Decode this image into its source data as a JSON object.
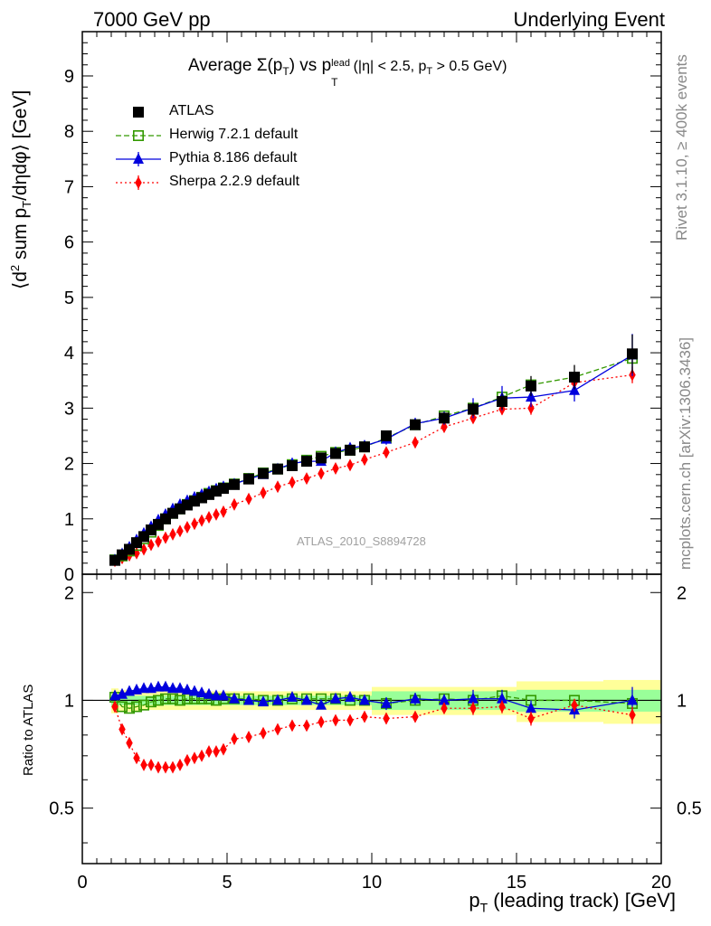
{
  "header": {
    "left": "7000 GeV pp",
    "right": "Underlying Event"
  },
  "side_labels": {
    "rivet": "Rivet 3.1.10, ≥ 400k events",
    "mcplots": "mcplots.cern.ch [arXiv:1306.3436]"
  },
  "watermark": "ATLAS_2010_S8894728",
  "chart_data": [
    {
      "type": "scatter",
      "title": "Average Σ(pT) vs pT lead (|η| < 2.5, pT > 0.5 GeV)",
      "title_parts": {
        "a": "Average ",
        "sigma": "Σ(p",
        "sub1": "T",
        "close": ") vs p",
        "sup": "lead",
        "sub2": "T",
        "rest": " (|η| < 2.5, p",
        "sub3": "T",
        "end": " > 0.5 GeV)"
      },
      "xlabel": "pT (leading track) [GeV]",
      "xlabel_parts": {
        "p": "p",
        "sub": "T",
        "rest": " (leading track) [GeV]"
      },
      "ylabel": "⟨d² sum pT/dηdφ⟩ [GeV]",
      "ylabel_parts": {
        "a": "⟨d",
        "sup": "2",
        "b": " sum p",
        "sub": "T",
        "c": "/dηdφ⟩ [GeV]"
      },
      "xlim": [
        0,
        20
      ],
      "ylim": [
        0,
        9.8
      ],
      "x_ticks": [
        0,
        5,
        10,
        15,
        20
      ],
      "y_ticks": [
        0,
        1,
        2,
        3,
        4,
        5,
        6,
        7,
        8,
        9
      ],
      "legend_position": "top-left",
      "x": [
        1.125,
        1.375,
        1.625,
        1.875,
        2.125,
        2.375,
        2.625,
        2.875,
        3.125,
        3.375,
        3.625,
        3.875,
        4.125,
        4.375,
        4.625,
        4.875,
        5.25,
        5.75,
        6.25,
        6.75,
        7.25,
        7.75,
        8.25,
        8.75,
        9.25,
        9.75,
        10.5,
        11.5,
        12.5,
        13.5,
        14.5,
        15.5,
        17.0,
        19.0
      ],
      "series": [
        {
          "name": "ATLAS",
          "color": "#000000",
          "marker": "square",
          "values": [
            0.25,
            0.35,
            0.45,
            0.57,
            0.68,
            0.8,
            0.9,
            1.0,
            1.1,
            1.18,
            1.25,
            1.32,
            1.38,
            1.44,
            1.5,
            1.55,
            1.62,
            1.72,
            1.82,
            1.9,
            1.96,
            2.04,
            2.1,
            2.18,
            2.24,
            2.3,
            2.5,
            2.7,
            2.82,
            2.98,
            3.12,
            3.4,
            3.56,
            3.98
          ],
          "errors": [
            0.01,
            0.01,
            0.01,
            0.01,
            0.01,
            0.01,
            0.01,
            0.02,
            0.02,
            0.02,
            0.02,
            0.02,
            0.02,
            0.02,
            0.02,
            0.02,
            0.03,
            0.03,
            0.03,
            0.04,
            0.04,
            0.04,
            0.05,
            0.05,
            0.06,
            0.06,
            0.07,
            0.09,
            0.1,
            0.12,
            0.14,
            0.18,
            0.22,
            0.35
          ]
        },
        {
          "name": "Herwig 7.2.1 default",
          "color": "#339900",
          "marker": "open-square",
          "line": "dashed",
          "values": [
            0.26,
            0.33,
            0.42,
            0.52,
            0.64,
            0.76,
            0.88,
            1.0,
            1.1,
            1.18,
            1.26,
            1.33,
            1.39,
            1.46,
            1.51,
            1.56,
            1.63,
            1.73,
            1.83,
            1.9,
            1.98,
            2.06,
            2.13,
            2.2,
            2.24,
            2.3,
            2.46,
            2.7,
            2.86,
            3.0,
            3.2,
            3.42,
            3.56,
            3.9
          ]
        },
        {
          "name": "Pythia 8.186 default",
          "color": "#0000dd",
          "marker": "triangle",
          "line": "solid",
          "values": [
            0.26,
            0.37,
            0.49,
            0.62,
            0.74,
            0.86,
            0.98,
            1.08,
            1.18,
            1.26,
            1.33,
            1.39,
            1.44,
            1.49,
            1.54,
            1.58,
            1.63,
            1.72,
            1.8,
            1.9,
            2.0,
            2.04,
            2.04,
            2.2,
            2.28,
            2.32,
            2.44,
            2.72,
            2.82,
            3.0,
            3.18,
            3.2,
            3.32,
            3.96
          ],
          "errors": [
            0.01,
            0.01,
            0.01,
            0.01,
            0.01,
            0.01,
            0.01,
            0.02,
            0.02,
            0.02,
            0.02,
            0.02,
            0.02,
            0.02,
            0.02,
            0.02,
            0.03,
            0.03,
            0.03,
            0.04,
            0.04,
            0.04,
            0.05,
            0.06,
            0.07,
            0.08,
            0.1,
            0.1,
            0.12,
            0.18,
            0.22,
            0.18,
            0.2,
            0.38
          ]
        },
        {
          "name": "Sherpa 2.2.9 default",
          "color": "#ff0000",
          "marker": "diamond",
          "line": "dotted",
          "values": [
            0.24,
            0.29,
            0.34,
            0.38,
            0.45,
            0.53,
            0.59,
            0.66,
            0.72,
            0.78,
            0.85,
            0.91,
            0.97,
            1.03,
            1.08,
            1.13,
            1.26,
            1.36,
            1.47,
            1.58,
            1.66,
            1.73,
            1.82,
            1.91,
            1.97,
            2.07,
            2.2,
            2.38,
            2.66,
            2.82,
            2.98,
            3.0,
            3.46,
            3.6
          ],
          "errors": [
            0.01,
            0.01,
            0.01,
            0.01,
            0.01,
            0.01,
            0.01,
            0.01,
            0.01,
            0.01,
            0.01,
            0.02,
            0.02,
            0.02,
            0.02,
            0.02,
            0.02,
            0.02,
            0.02,
            0.02,
            0.03,
            0.03,
            0.03,
            0.03,
            0.04,
            0.04,
            0.05,
            0.06,
            0.07,
            0.08,
            0.1,
            0.12,
            0.12,
            0.15
          ]
        }
      ]
    },
    {
      "type": "scatter",
      "title": "",
      "ylabel": "Ratio to ATLAS",
      "xlim": [
        0,
        20
      ],
      "ylim": [
        0.35,
        2.25
      ],
      "x_ticks": [
        0,
        5,
        10,
        15,
        20
      ],
      "y_ticks": [
        0.5,
        1,
        2
      ],
      "bands": {
        "inner_color": "#99ff99",
        "outer_color": "#ffff99",
        "edges": [
          1.0,
          1.25,
          1.5,
          1.75,
          2.0,
          2.25,
          2.5,
          2.75,
          3.0,
          3.25,
          3.5,
          3.75,
          4.0,
          4.25,
          4.5,
          4.75,
          5.0,
          5.5,
          6.0,
          6.5,
          7.0,
          7.5,
          8.0,
          8.5,
          9.0,
          9.5,
          10.0,
          11.0,
          12.0,
          13.0,
          14.0,
          15.0,
          16.0,
          18.0,
          20.0
        ],
        "inner_halfwidth": [
          0.04,
          0.03,
          0.03,
          0.03,
          0.03,
          0.03,
          0.03,
          0.03,
          0.03,
          0.03,
          0.03,
          0.03,
          0.03,
          0.03,
          0.03,
          0.03,
          0.03,
          0.03,
          0.03,
          0.03,
          0.03,
          0.03,
          0.03,
          0.03,
          0.03,
          0.03,
          0.06,
          0.06,
          0.06,
          0.06,
          0.06,
          0.07,
          0.07,
          0.07
        ],
        "outer_halfwidth": [
          0.08,
          0.07,
          0.07,
          0.07,
          0.06,
          0.06,
          0.06,
          0.06,
          0.06,
          0.06,
          0.06,
          0.06,
          0.06,
          0.06,
          0.06,
          0.06,
          0.06,
          0.06,
          0.06,
          0.06,
          0.06,
          0.06,
          0.06,
          0.06,
          0.06,
          0.06,
          0.09,
          0.09,
          0.09,
          0.09,
          0.09,
          0.13,
          0.13,
          0.14
        ]
      },
      "x": [
        1.125,
        1.375,
        1.625,
        1.875,
        2.125,
        2.375,
        2.625,
        2.875,
        3.125,
        3.375,
        3.625,
        3.875,
        4.125,
        4.375,
        4.625,
        4.875,
        5.25,
        5.75,
        6.25,
        6.75,
        7.25,
        7.75,
        8.25,
        8.75,
        9.25,
        9.75,
        10.5,
        11.5,
        12.5,
        13.5,
        14.5,
        15.5,
        17.0,
        19.0
      ],
      "series": [
        {
          "name": "Herwig 7.2.1 default",
          "color": "#339900",
          "marker": "open-square",
          "line": "dashed",
          "values": [
            1.02,
            0.96,
            0.95,
            0.96,
            0.97,
            0.99,
            1.0,
            1.01,
            1.01,
            1.0,
            1.01,
            1.01,
            1.01,
            1.01,
            1.0,
            1.01,
            1.01,
            1.01,
            1.0,
            1.0,
            1.01,
            1.01,
            1.01,
            1.01,
            1.0,
            1.0,
            0.98,
            1.0,
            1.01,
            1.0,
            1.03,
            1.0,
            1.0,
            0.98
          ]
        },
        {
          "name": "Pythia 8.186 default",
          "color": "#0000dd",
          "marker": "triangle",
          "line": "solid",
          "values": [
            1.03,
            1.04,
            1.06,
            1.07,
            1.08,
            1.08,
            1.09,
            1.09,
            1.08,
            1.08,
            1.07,
            1.06,
            1.05,
            1.04,
            1.03,
            1.03,
            1.01,
            1.0,
            0.99,
            1.0,
            1.02,
            1.0,
            0.97,
            1.01,
            1.02,
            1.0,
            0.98,
            1.01,
            1.0,
            1.01,
            1.01,
            0.95,
            0.94,
            1.0
          ],
          "errors": [
            0.01,
            0.01,
            0.01,
            0.01,
            0.01,
            0.01,
            0.01,
            0.01,
            0.01,
            0.01,
            0.01,
            0.01,
            0.01,
            0.01,
            0.01,
            0.01,
            0.01,
            0.01,
            0.01,
            0.02,
            0.02,
            0.02,
            0.02,
            0.03,
            0.03,
            0.03,
            0.04,
            0.04,
            0.04,
            0.06,
            0.06,
            0.05,
            0.05,
            0.09
          ]
        },
        {
          "name": "Sherpa 2.2.9 default",
          "color": "#ff0000",
          "marker": "diamond",
          "line": "dotted",
          "values": [
            0.96,
            0.83,
            0.76,
            0.69,
            0.66,
            0.66,
            0.65,
            0.65,
            0.65,
            0.66,
            0.68,
            0.69,
            0.7,
            0.72,
            0.72,
            0.73,
            0.78,
            0.79,
            0.81,
            0.83,
            0.85,
            0.85,
            0.87,
            0.88,
            0.88,
            0.9,
            0.89,
            0.9,
            0.95,
            0.95,
            0.96,
            0.89,
            0.97,
            0.91
          ],
          "errors": [
            0.01,
            0.01,
            0.01,
            0.01,
            0.01,
            0.01,
            0.01,
            0.01,
            0.01,
            0.01,
            0.01,
            0.01,
            0.01,
            0.01,
            0.01,
            0.01,
            0.01,
            0.01,
            0.01,
            0.01,
            0.02,
            0.02,
            0.02,
            0.02,
            0.02,
            0.02,
            0.03,
            0.03,
            0.03,
            0.04,
            0.04,
            0.04,
            0.04,
            0.05
          ]
        }
      ]
    }
  ]
}
